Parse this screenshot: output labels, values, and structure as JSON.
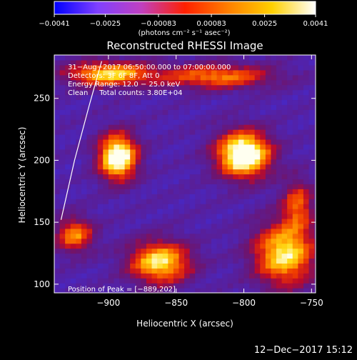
{
  "colorbar": {
    "ticks": [
      "−0.0041",
      "−0.0025",
      "−0.00083",
      "0.00083",
      "0.0025",
      "0.0041"
    ],
    "tick_values": [
      -0.0041,
      -0.0025,
      -0.00083,
      0.00083,
      0.0025,
      0.0041
    ],
    "range": [
      -0.0041,
      0.0041
    ],
    "units": "(photons cm⁻² s⁻¹ asec⁻²)",
    "colors": [
      "#0000ff",
      "#8040ff",
      "#c040c0",
      "#ff2000",
      "#ff8000",
      "#ffd000",
      "#ffffff"
    ]
  },
  "chart_data": {
    "type": "heatmap",
    "title": "Reconstructed RHESSI Image",
    "xlabel": "Heliocentric X (arcsec)",
    "ylabel": "Heliocentric Y (arcsec)",
    "xlim": [
      -940,
      -747
    ],
    "ylim": [
      93,
      285
    ],
    "x_ticks": [
      -900,
      -850,
      -800,
      -750
    ],
    "y_ticks": [
      100,
      150,
      200,
      250
    ],
    "x_tick_labels": [
      "−900",
      "−850",
      "−800",
      "−750"
    ],
    "y_tick_labels": [
      "100",
      "150",
      "200",
      "250"
    ],
    "grid": false,
    "info_lines": [
      "31−Aug−2017 06:50:00.000 to 07:00:00.000",
      "Detectors: 3F 6F 8F, Att 0",
      "Energy Range: 12.0 − 25.0 keV",
      "Clean     Total counts: 3.80E+04"
    ],
    "peak_label": "Position of Peak = [−889,202]",
    "peak_position": [
      -889,
      202
    ],
    "sources": [
      {
        "x": -800,
        "y": 205,
        "sx": 14,
        "sy": 13,
        "amp": 1.0
      },
      {
        "x": -893,
        "y": 203,
        "sx": 10,
        "sy": 13,
        "amp": 0.95
      },
      {
        "x": -900,
        "y": 270,
        "sx": 22,
        "sy": 7,
        "amp": 0.7
      },
      {
        "x": -820,
        "y": 268,
        "sx": 30,
        "sy": 7,
        "amp": 0.55
      },
      {
        "x": -862,
        "y": 118,
        "sx": 16,
        "sy": 12,
        "amp": 0.75
      },
      {
        "x": -770,
        "y": 125,
        "sx": 16,
        "sy": 18,
        "amp": 0.75
      },
      {
        "x": -925,
        "y": 140,
        "sx": 10,
        "sy": 10,
        "amp": 0.55
      },
      {
        "x": -760,
        "y": 165,
        "sx": 8,
        "sy": 14,
        "amp": 0.45
      }
    ],
    "limb": [
      [
        -935,
        152
      ],
      [
        -925,
        200
      ],
      [
        -914,
        245
      ],
      [
        -905,
        280
      ]
    ]
  },
  "footer": {
    "timestamp": "12−Dec−2017 15:12"
  }
}
